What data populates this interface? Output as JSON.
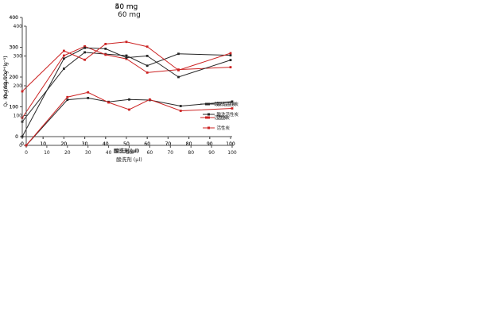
{
  "figure": {
    "background": "#ffffff"
  },
  "colors": {
    "acid_washed_series": "#262626",
    "plain_series": "#cc2222",
    "axis": "#4d4d4d",
    "text": "#1a1a1a"
  },
  "chart_data": [
    {
      "id": "40mg",
      "type": "line",
      "title": "40 mg",
      "xlabel": "酸洗剂(μl)",
      "ylabel": "Qₑ (mg SO₄²⁻ g⁻¹)",
      "xlim": [
        0,
        100
      ],
      "ylim": [
        0,
        400
      ],
      "xticks": [
        0,
        10,
        20,
        30,
        40,
        50,
        60,
        70,
        80,
        90,
        100
      ],
      "yticks": [
        0,
        100,
        200,
        300,
        400
      ],
      "grid": false,
      "legend_position": "right-middle-inside",
      "x": [
        0,
        20,
        30,
        40,
        50,
        60,
        75,
        100
      ],
      "series": [
        {
          "name": "酸洗活性炭",
          "color_key": "acid_washed_series",
          "marker": "square",
          "values": [
            50,
            228,
            283,
            277,
            272,
            238,
            278,
            273
          ]
        },
        {
          "name": "活性炭",
          "color_key": "plain_series",
          "marker": "square",
          "values": [
            63,
            272,
            303,
            275,
            261,
            215,
            225,
            233
          ]
        }
      ]
    },
    {
      "id": "50mg",
      "type": "line",
      "title": "50 mg",
      "xlabel": "酸洗剂 (μl)",
      "ylabel": "Qₑ (mg SO₄²⁻ g⁻¹)",
      "xlim": [
        0,
        100
      ],
      "ylim": [
        0,
        400
      ],
      "xticks": [
        0,
        10,
        20,
        30,
        40,
        50,
        60,
        70,
        80,
        90,
        100
      ],
      "yticks": [
        0,
        100,
        200,
        300,
        400
      ],
      "grid": false,
      "legend_position": "right-middle-inside",
      "x": [
        0,
        20,
        30,
        40,
        50,
        60,
        75,
        100
      ],
      "series": [
        {
          "name": "酸洗活性炭",
          "color_key": "acid_washed_series",
          "marker": "square",
          "values": [
            0,
            262,
            298,
            295,
            265,
            271,
            200,
            257
          ]
        },
        {
          "name": "活性炭",
          "color_key": "plain_series",
          "marker": "square",
          "values": [
            152,
            288,
            258,
            311,
            318,
            302,
            223,
            280
          ]
        }
      ]
    },
    {
      "id": "60mg",
      "type": "line",
      "title": "60 mg",
      "xlabel": "酸洗剂 (μl)",
      "ylabel": "Qₑ (mg SO₄²⁻ g⁻¹)",
      "xlim": [
        0,
        100
      ],
      "ylim": [
        0,
        400
      ],
      "xticks": [
        0,
        10,
        20,
        30,
        40,
        50,
        60,
        70,
        80,
        90,
        100
      ],
      "yticks": [
        0,
        100,
        200,
        300,
        400
      ],
      "grid": false,
      "legend_position": "right-lower-inside",
      "x": [
        0,
        20,
        30,
        40,
        50,
        60,
        75,
        100
      ],
      "series": [
        {
          "name": "酸洗活性炭",
          "color_key": "acid_washed_series",
          "marker": "square",
          "values": [
            0,
            153,
            159,
            146,
            154,
            152,
            132,
            147
          ]
        },
        {
          "name": "活性炭",
          "color_key": "plain_series",
          "marker": "square",
          "values": [
            0,
            162,
            178,
            144,
            120,
            154,
            116,
            124
          ]
        }
      ]
    }
  ]
}
